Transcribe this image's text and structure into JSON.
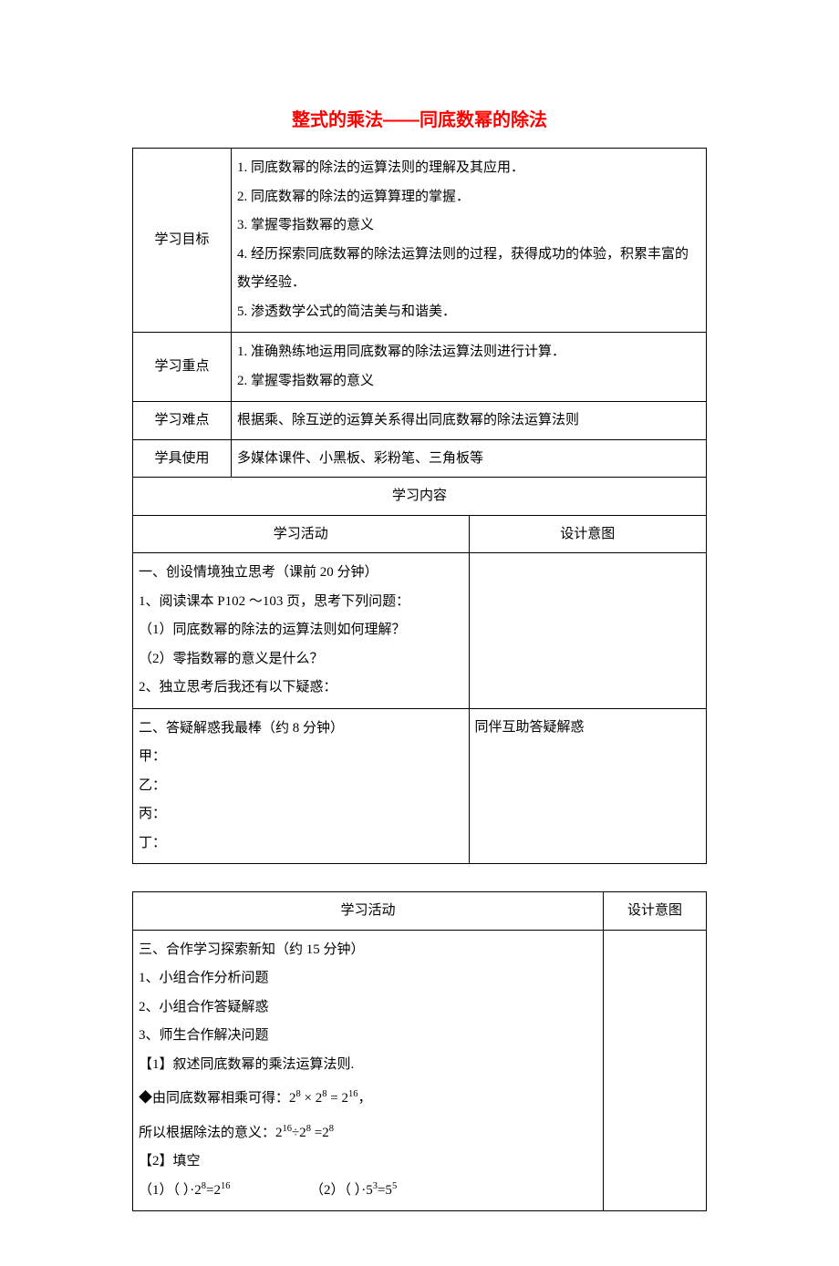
{
  "title": "整式的乘法——同底数幂的除法",
  "table1": {
    "row_objectives": {
      "label": "学习目标",
      "content": "1.  同底数幂的除法的运算法则的理解及其应用．\n2. 同底数幂的除法的运算算理的掌握．\n3. 掌握零指数幂的意义\n4. 经历探索同底数幂的除法运算法则的过程，获得成功的体验，积累丰富的数学经验．\n5. 渗透数学公式的简洁美与和谐美．"
    },
    "row_keypoints": {
      "label": "学习重点",
      "content": "1. 准确熟练地运用同底数幂的除法运算法则进行计算．\n2.  掌握零指数幂的意义"
    },
    "row_difficulty": {
      "label": "学习难点",
      "content": "根据乘、除互逆的运算关系得出同底数幂的除法运算法则"
    },
    "row_tools": {
      "label": "学具使用",
      "content": "多媒体课件、小黑板、彩粉笔、三角板等"
    },
    "row_contentheader": "学习内容",
    "row_activityheader": {
      "activity": "学习活动",
      "intent": "设计意图"
    },
    "row_section1": "一、创设情境独立思考（课前 20 分钟）\n1、阅读课本 P102 ～103 页，思考下列问题：\n（1）同底数幂的除法的运算法则如何理解？\n（2）零指数幂的意义是什么？\n2、独立思考后我还有以下疑惑：",
    "row_section2": {
      "activity": "二、答疑解惑我最棒（约 8 分钟）\n甲：\n乙：\n丙：\n丁：",
      "intent": "同伴互助答疑解惑"
    }
  },
  "table2": {
    "row_header": {
      "activity": "学习活动",
      "intent": "设计意图"
    },
    "section3_lines": [
      "三、合作学习探索新知（约 15 分钟）",
      "1、小组合作分析问题",
      "2、小组合作答疑解惑",
      "3、师生合作解决问题",
      "【1】叙述同底数幂的乘法运算法则."
    ],
    "formula1_prefix": "◆由同底数幂相乘可得：",
    "formula1_math": "2^8 × 2^8 = 2^16",
    "formula2_prefix": "所以根据除法的意义：",
    "formula2_math": "2^16 ÷ 2^8 = 2^8",
    "fill_label": "【2】填空",
    "fill1_prefix": "（1）（    ）·",
    "fill1_math": "2^8=2^16",
    "fill2_prefix": "（2）（    ）·",
    "fill2_math": "5^3=5^5"
  }
}
